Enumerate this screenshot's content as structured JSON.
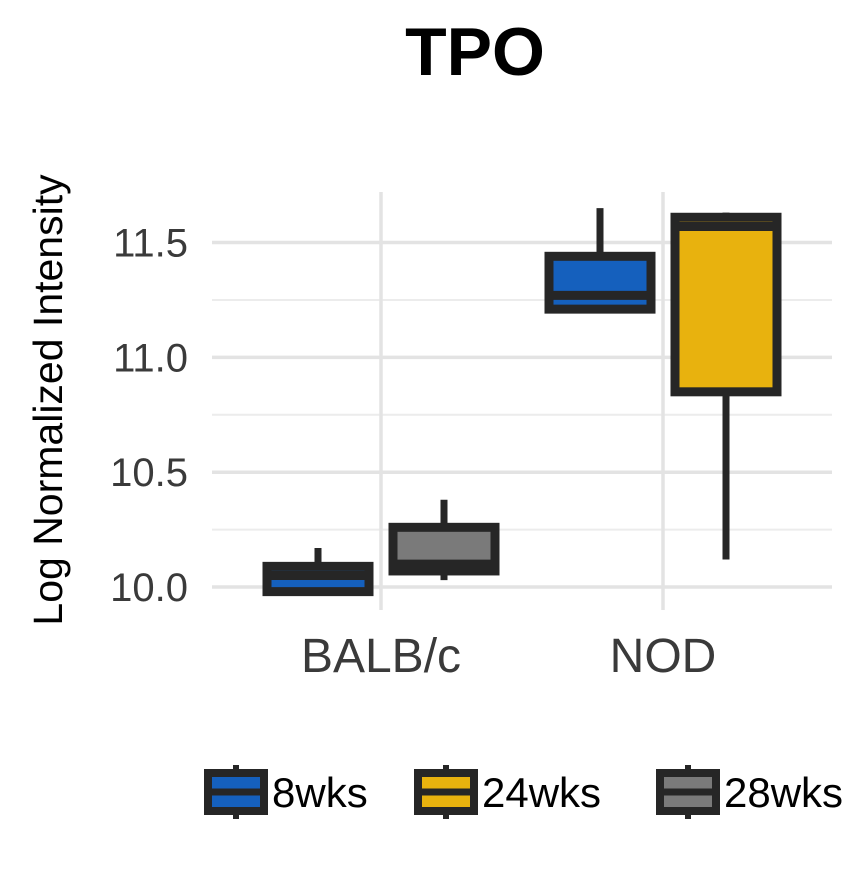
{
  "chart_data": {
    "type": "box",
    "title": "TPO",
    "xlabel": "",
    "ylabel": "Log Normalized Intensity",
    "categories": [
      "BALB/c",
      "NOD"
    ],
    "y_ticks": [
      "10.0",
      "10.5",
      "11.0",
      "11.5"
    ],
    "ylim": [
      9.9,
      11.72
    ],
    "grid": true,
    "legend_position": "bottom",
    "series": [
      {
        "name": "8wks",
        "color": "#1560bd",
        "boxes": [
          {
            "category": "BALB/c",
            "min": 9.97,
            "q1": 9.98,
            "median": 10.05,
            "q3": 10.09,
            "max": 10.17
          },
          {
            "category": "NOD",
            "min": 11.2,
            "q1": 11.21,
            "median": 11.27,
            "q3": 11.44,
            "max": 11.65
          }
        ]
      },
      {
        "name": "24wks",
        "color": "#e8b20e",
        "boxes": [
          {
            "category": "NOD",
            "min": 10.12,
            "q1": 10.85,
            "median": 11.57,
            "q3": 11.61,
            "max": 11.63
          }
        ]
      },
      {
        "name": "28wks",
        "color": "#7a7a7a",
        "boxes": [
          {
            "category": "BALB/c",
            "min": 10.03,
            "q1": 10.07,
            "median": 10.1,
            "q3": 10.26,
            "max": 10.38
          }
        ]
      }
    ]
  }
}
